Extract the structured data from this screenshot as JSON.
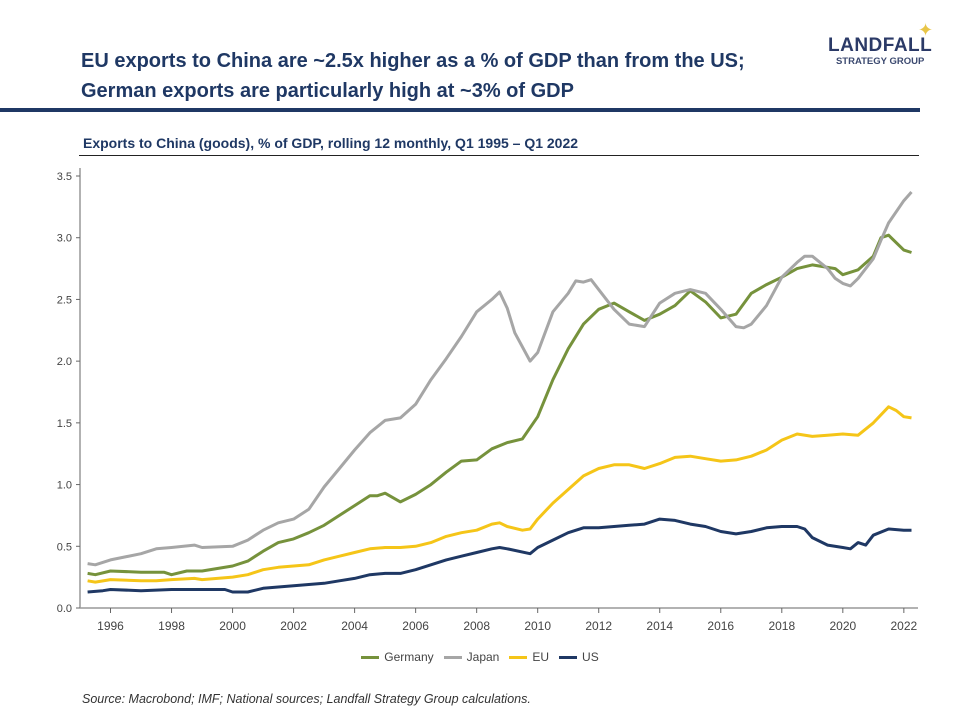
{
  "header": {
    "title_line1": "EU exports to China are ~2.5x higher as a % of GDP than from the US;",
    "title_line2": "German exports are particularly high at ~3% of GDP",
    "logo_main": "LANDFALL",
    "logo_sub": "STRATEGY GROUP"
  },
  "source": "Source: Macrobond; IMF; National sources; Landfall Strategy Group calculations.",
  "chart_data": {
    "type": "line",
    "title": "Exports to China (goods), % of GDP, rolling 12 monthly, Q1 1995 – Q1 2022",
    "xlabel": "",
    "ylabel": "",
    "xlim": [
      1995,
      2022.3
    ],
    "ylim": [
      0,
      3.5
    ],
    "x_ticks": [
      "1996",
      "1998",
      "2000",
      "2002",
      "2004",
      "2006",
      "2008",
      "2010",
      "2012",
      "2014",
      "2016",
      "2018",
      "2020",
      "2022"
    ],
    "y_ticks": [
      "0.0",
      "0.5",
      "1.0",
      "1.5",
      "2.0",
      "2.5",
      "3.0",
      "3.5"
    ],
    "grid": false,
    "legend": "bottom",
    "series": [
      {
        "name": "Germany",
        "color": "#76923c",
        "points": [
          [
            1995.25,
            0.28
          ],
          [
            1995.5,
            0.27
          ],
          [
            1996,
            0.3
          ],
          [
            1997,
            0.29
          ],
          [
            1997.75,
            0.29
          ],
          [
            1998,
            0.27
          ],
          [
            1998.5,
            0.3
          ],
          [
            1999,
            0.3
          ],
          [
            2000,
            0.34
          ],
          [
            2000.5,
            0.38
          ],
          [
            2001,
            0.46
          ],
          [
            2001.5,
            0.53
          ],
          [
            2002,
            0.56
          ],
          [
            2002.5,
            0.61
          ],
          [
            2003,
            0.67
          ],
          [
            2003.5,
            0.75
          ],
          [
            2004,
            0.83
          ],
          [
            2004.5,
            0.91
          ],
          [
            2004.75,
            0.91
          ],
          [
            2005,
            0.93
          ],
          [
            2005.5,
            0.86
          ],
          [
            2006,
            0.92
          ],
          [
            2006.5,
            1.0
          ],
          [
            2007,
            1.1
          ],
          [
            2007.5,
            1.19
          ],
          [
            2008,
            1.2
          ],
          [
            2008.5,
            1.29
          ],
          [
            2009,
            1.34
          ],
          [
            2009.5,
            1.37
          ],
          [
            2010,
            1.55
          ],
          [
            2010.5,
            1.85
          ],
          [
            2011,
            2.1
          ],
          [
            2011.5,
            2.3
          ],
          [
            2012,
            2.42
          ],
          [
            2012.5,
            2.47
          ],
          [
            2013,
            2.4
          ],
          [
            2013.5,
            2.33
          ],
          [
            2014,
            2.38
          ],
          [
            2014.5,
            2.45
          ],
          [
            2015,
            2.57
          ],
          [
            2015.5,
            2.48
          ],
          [
            2016,
            2.35
          ],
          [
            2016.5,
            2.38
          ],
          [
            2017,
            2.55
          ],
          [
            2017.5,
            2.62
          ],
          [
            2018,
            2.68
          ],
          [
            2018.5,
            2.75
          ],
          [
            2019,
            2.78
          ],
          [
            2019.75,
            2.75
          ],
          [
            2020,
            2.7
          ],
          [
            2020.5,
            2.74
          ],
          [
            2021,
            2.85
          ],
          [
            2021.25,
            3.0
          ],
          [
            2021.5,
            3.02
          ],
          [
            2022,
            2.9
          ],
          [
            2022.25,
            2.88
          ]
        ]
      },
      {
        "name": "Japan",
        "color": "#a6a6a6",
        "points": [
          [
            1995.25,
            0.36
          ],
          [
            1995.5,
            0.35
          ],
          [
            1996,
            0.39
          ],
          [
            1997,
            0.44
          ],
          [
            1997.5,
            0.48
          ],
          [
            1998,
            0.49
          ],
          [
            1998.75,
            0.51
          ],
          [
            1999,
            0.49
          ],
          [
            2000,
            0.5
          ],
          [
            2000.5,
            0.55
          ],
          [
            2001,
            0.63
          ],
          [
            2001.5,
            0.69
          ],
          [
            2002,
            0.72
          ],
          [
            2002.5,
            0.8
          ],
          [
            2003,
            0.98
          ],
          [
            2003.5,
            1.13
          ],
          [
            2004,
            1.28
          ],
          [
            2004.5,
            1.42
          ],
          [
            2005,
            1.52
          ],
          [
            2005.5,
            1.54
          ],
          [
            2006,
            1.65
          ],
          [
            2006.5,
            1.85
          ],
          [
            2007,
            2.02
          ],
          [
            2007.5,
            2.2
          ],
          [
            2008,
            2.4
          ],
          [
            2008.5,
            2.5
          ],
          [
            2008.75,
            2.56
          ],
          [
            2009,
            2.43
          ],
          [
            2009.25,
            2.23
          ],
          [
            2009.75,
            2.0
          ],
          [
            2010,
            2.07
          ],
          [
            2010.5,
            2.4
          ],
          [
            2011,
            2.55
          ],
          [
            2011.25,
            2.65
          ],
          [
            2011.5,
            2.64
          ],
          [
            2011.75,
            2.66
          ],
          [
            2012,
            2.58
          ],
          [
            2012.5,
            2.42
          ],
          [
            2013,
            2.3
          ],
          [
            2013.5,
            2.28
          ],
          [
            2014,
            2.47
          ],
          [
            2014.5,
            2.55
          ],
          [
            2015,
            2.58
          ],
          [
            2015.5,
            2.55
          ],
          [
            2016,
            2.42
          ],
          [
            2016.5,
            2.28
          ],
          [
            2016.75,
            2.27
          ],
          [
            2017,
            2.3
          ],
          [
            2017.5,
            2.45
          ],
          [
            2018,
            2.68
          ],
          [
            2018.5,
            2.8
          ],
          [
            2018.75,
            2.85
          ],
          [
            2019,
            2.85
          ],
          [
            2019.5,
            2.75
          ],
          [
            2019.75,
            2.67
          ],
          [
            2020,
            2.63
          ],
          [
            2020.25,
            2.61
          ],
          [
            2020.5,
            2.67
          ],
          [
            2021,
            2.83
          ],
          [
            2021.25,
            2.98
          ],
          [
            2021.5,
            3.12
          ],
          [
            2022,
            3.3
          ],
          [
            2022.25,
            3.37
          ]
        ]
      },
      {
        "name": "EU",
        "color": "#f5c518",
        "points": [
          [
            1995.25,
            0.22
          ],
          [
            1995.5,
            0.21
          ],
          [
            1996,
            0.23
          ],
          [
            1997,
            0.22
          ],
          [
            1997.5,
            0.22
          ],
          [
            1998,
            0.23
          ],
          [
            1998.75,
            0.24
          ],
          [
            1999,
            0.23
          ],
          [
            2000,
            0.25
          ],
          [
            2000.5,
            0.27
          ],
          [
            2001,
            0.31
          ],
          [
            2001.5,
            0.33
          ],
          [
            2002,
            0.34
          ],
          [
            2002.5,
            0.35
          ],
          [
            2003,
            0.39
          ],
          [
            2003.5,
            0.42
          ],
          [
            2004,
            0.45
          ],
          [
            2004.5,
            0.48
          ],
          [
            2005,
            0.49
          ],
          [
            2005.5,
            0.49
          ],
          [
            2006,
            0.5
          ],
          [
            2006.5,
            0.53
          ],
          [
            2007,
            0.58
          ],
          [
            2007.5,
            0.61
          ],
          [
            2008,
            0.63
          ],
          [
            2008.5,
            0.68
          ],
          [
            2008.75,
            0.69
          ],
          [
            2009,
            0.66
          ],
          [
            2009.5,
            0.63
          ],
          [
            2009.75,
            0.64
          ],
          [
            2010,
            0.72
          ],
          [
            2010.5,
            0.85
          ],
          [
            2011,
            0.96
          ],
          [
            2011.5,
            1.07
          ],
          [
            2012,
            1.13
          ],
          [
            2012.5,
            1.16
          ],
          [
            2013,
            1.16
          ],
          [
            2013.5,
            1.13
          ],
          [
            2014,
            1.17
          ],
          [
            2014.5,
            1.22
          ],
          [
            2015,
            1.23
          ],
          [
            2015.5,
            1.21
          ],
          [
            2016,
            1.19
          ],
          [
            2016.5,
            1.2
          ],
          [
            2017,
            1.23
          ],
          [
            2017.5,
            1.28
          ],
          [
            2018,
            1.36
          ],
          [
            2018.5,
            1.41
          ],
          [
            2019,
            1.39
          ],
          [
            2019.5,
            1.4
          ],
          [
            2020,
            1.41
          ],
          [
            2020.5,
            1.4
          ],
          [
            2021,
            1.5
          ],
          [
            2021.5,
            1.63
          ],
          [
            2021.75,
            1.6
          ],
          [
            2022,
            1.55
          ],
          [
            2022.25,
            1.54
          ]
        ]
      },
      {
        "name": "US",
        "color": "#1f3864",
        "points": [
          [
            1995.25,
            0.13
          ],
          [
            1995.75,
            0.14
          ],
          [
            1996,
            0.15
          ],
          [
            1997,
            0.14
          ],
          [
            1998,
            0.15
          ],
          [
            1999,
            0.15
          ],
          [
            1999.75,
            0.15
          ],
          [
            2000,
            0.13
          ],
          [
            2000.5,
            0.13
          ],
          [
            2001,
            0.16
          ],
          [
            2001.5,
            0.17
          ],
          [
            2002,
            0.18
          ],
          [
            2002.5,
            0.19
          ],
          [
            2003,
            0.2
          ],
          [
            2003.5,
            0.22
          ],
          [
            2004,
            0.24
          ],
          [
            2004.5,
            0.27
          ],
          [
            2005,
            0.28
          ],
          [
            2005.5,
            0.28
          ],
          [
            2006,
            0.31
          ],
          [
            2006.5,
            0.35
          ],
          [
            2007,
            0.39
          ],
          [
            2007.5,
            0.42
          ],
          [
            2008,
            0.45
          ],
          [
            2008.5,
            0.48
          ],
          [
            2008.75,
            0.49
          ],
          [
            2009,
            0.48
          ],
          [
            2009.75,
            0.44
          ],
          [
            2010,
            0.49
          ],
          [
            2010.5,
            0.55
          ],
          [
            2011,
            0.61
          ],
          [
            2011.5,
            0.65
          ],
          [
            2012,
            0.65
          ],
          [
            2012.5,
            0.66
          ],
          [
            2013,
            0.67
          ],
          [
            2013.5,
            0.68
          ],
          [
            2014,
            0.72
          ],
          [
            2014.5,
            0.71
          ],
          [
            2015,
            0.68
          ],
          [
            2015.5,
            0.66
          ],
          [
            2016,
            0.62
          ],
          [
            2016.5,
            0.6
          ],
          [
            2017,
            0.62
          ],
          [
            2017.5,
            0.65
          ],
          [
            2018,
            0.66
          ],
          [
            2018.5,
            0.66
          ],
          [
            2018.75,
            0.64
          ],
          [
            2019,
            0.57
          ],
          [
            2019.5,
            0.51
          ],
          [
            2020,
            0.49
          ],
          [
            2020.25,
            0.48
          ],
          [
            2020.5,
            0.53
          ],
          [
            2020.75,
            0.51
          ],
          [
            2021,
            0.59
          ],
          [
            2021.5,
            0.64
          ],
          [
            2022,
            0.63
          ],
          [
            2022.25,
            0.63
          ]
        ]
      }
    ]
  }
}
